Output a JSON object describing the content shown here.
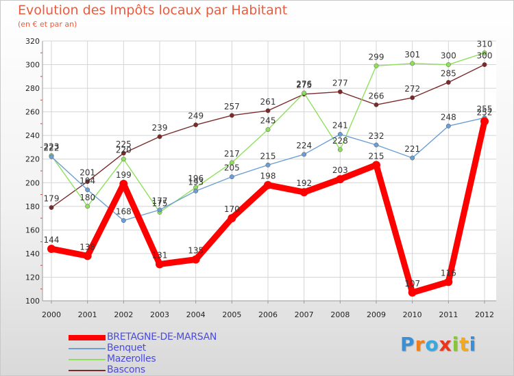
{
  "chart_data": {
    "type": "line",
    "title": "Evolution des Impôts locaux par Habitant",
    "subtitle": "(en € et par an)",
    "xlabel": "",
    "ylabel": "",
    "ylim": [
      100,
      320
    ],
    "yticks": [
      100,
      120,
      140,
      160,
      180,
      200,
      220,
      240,
      260,
      280,
      300,
      320
    ],
    "categories": [
      "2000",
      "2001",
      "2002",
      "2003",
      "2004",
      "2005",
      "2006",
      "2007",
      "2008",
      "2009",
      "2010",
      "2011",
      "2012"
    ],
    "grid": true,
    "legend_position": "bottom-left",
    "series": [
      {
        "name": "BRETAGNE-DE-MARSAN",
        "color": "#ff0000",
        "values": [
          144,
          138,
          199,
          131,
          135,
          170,
          198,
          192,
          203,
          215,
          107,
          116,
          252
        ]
      },
      {
        "name": "Benquet",
        "color": "#6a9ed4",
        "values": [
          222,
          194,
          168,
          177,
          193,
          205,
          215,
          224,
          241,
          232,
          221,
          248,
          255
        ]
      },
      {
        "name": "Mazerolles",
        "color": "#8ee05a",
        "values": [
          223,
          180,
          220,
          175,
          196,
          217,
          245,
          276,
          228,
          299,
          301,
          300,
          310
        ]
      },
      {
        "name": "Bascons",
        "color": "#7a2a2a",
        "values": [
          179,
          201,
          225,
          239,
          249,
          257,
          261,
          275,
          277,
          266,
          272,
          285,
          300
        ]
      }
    ]
  },
  "logo": {
    "letters": [
      "P",
      "r",
      "o",
      "x",
      "i",
      "t",
      "i"
    ],
    "colors": [
      "#3a8fd6",
      "#f07e1a",
      "#3aa8e0",
      "#e8351e",
      "#8ac43f",
      "#f2a91c",
      "#3a8fd6"
    ]
  }
}
